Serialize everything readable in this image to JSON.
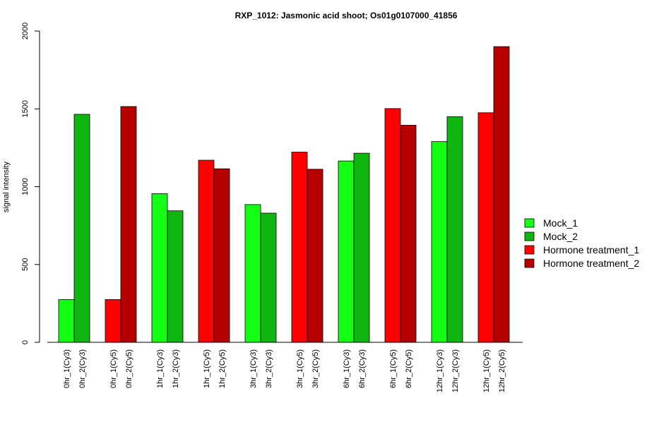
{
  "chart_data": {
    "type": "bar",
    "title": "RXP_1012: Jasmonic acid shoot; Os01g0107000_41856",
    "xlabel": "",
    "ylabel": "signal intensity",
    "ylim": [
      0,
      2000
    ],
    "yticks": [
      0,
      500,
      1000,
      1500,
      2000
    ],
    "grid": false,
    "legend_position": "right",
    "series": [
      {
        "name": "Mock_1",
        "color": "#13FF13"
      },
      {
        "name": "Mock_2",
        "color": "#10B610"
      },
      {
        "name": "Hormone treatment_1",
        "color": "#FF0000"
      },
      {
        "name": "Hormone treatment_2",
        "color": "#B60000"
      }
    ],
    "bars": [
      {
        "label": "0hr_1(Cy3)",
        "value": 275,
        "series": 0
      },
      {
        "label": "0hr_2(Cy3)",
        "value": 1465,
        "series": 1
      },
      {
        "label": "0hr_1(Cy5)",
        "value": 275,
        "series": 2
      },
      {
        "label": "0hr_2(Cy5)",
        "value": 1515,
        "series": 3
      },
      {
        "label": "1hr_1(Cy3)",
        "value": 955,
        "series": 0
      },
      {
        "label": "1hr_2(Cy3)",
        "value": 845,
        "series": 1
      },
      {
        "label": "1hr_1(Cy5)",
        "value": 1170,
        "series": 2
      },
      {
        "label": "1hr_2(Cy5)",
        "value": 1115,
        "series": 3
      },
      {
        "label": "3hr_1(Cy3)",
        "value": 885,
        "series": 0
      },
      {
        "label": "3hr_2(Cy3)",
        "value": 830,
        "series": 1
      },
      {
        "label": "3hr_1(Cy5)",
        "value": 1222,
        "series": 2
      },
      {
        "label": "3hr_2(Cy5)",
        "value": 1112,
        "series": 3
      },
      {
        "label": "6hr_1(Cy3)",
        "value": 1165,
        "series": 0
      },
      {
        "label": "6hr_2(Cy3)",
        "value": 1215,
        "series": 1
      },
      {
        "label": "6hr_1(Cy5)",
        "value": 1502,
        "series": 2
      },
      {
        "label": "6hr_2(Cy5)",
        "value": 1395,
        "series": 3
      },
      {
        "label": "12hr_1(Cy3)",
        "value": 1290,
        "series": 0
      },
      {
        "label": "12hr_2(Cy3)",
        "value": 1450,
        "series": 1
      },
      {
        "label": "12hr_1(Cy5)",
        "value": 1475,
        "series": 2
      },
      {
        "label": "12hr_2(Cy5)",
        "value": 1900,
        "series": 3
      }
    ]
  }
}
